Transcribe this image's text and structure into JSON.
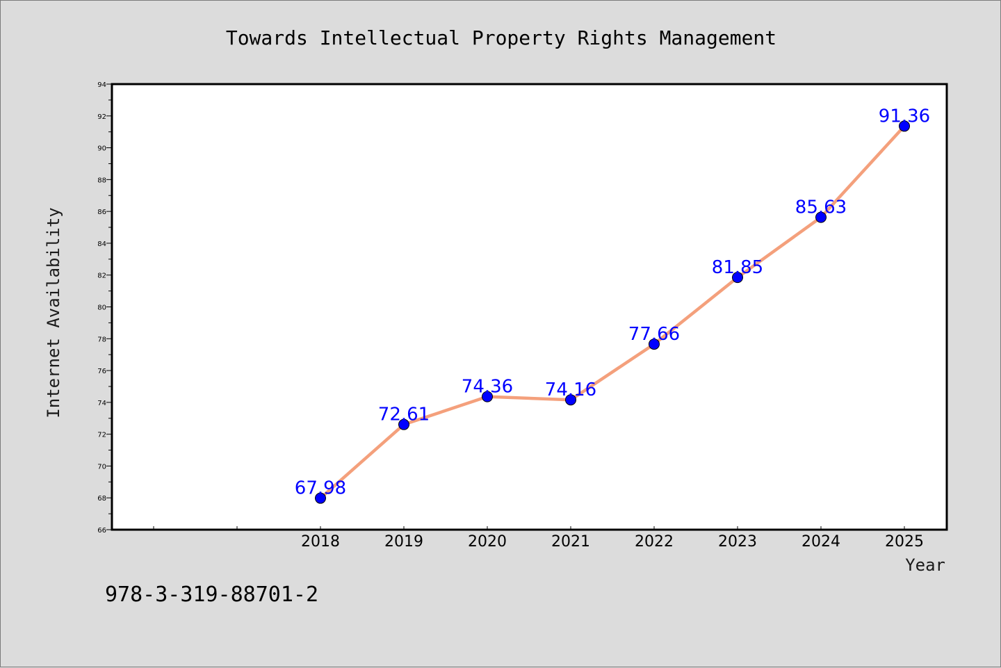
{
  "colors": {
    "background": "#dcdcdc",
    "plot_background": "#ffffff",
    "line": "#f4a07c",
    "marker": "#0000ff",
    "data_label": "#0000ff"
  },
  "footer": {
    "isbn": "978-3-319-88701-2"
  },
  "chart_data": {
    "type": "line",
    "title": "Towards Intellectual Property Rights Management",
    "xlabel": "Year",
    "ylabel": "Internet Availability",
    "categories": [
      "2018",
      "2019",
      "2020",
      "2021",
      "2022",
      "2023",
      "2024",
      "2025"
    ],
    "series": [
      {
        "values": [
          67.98,
          72.61,
          74.36,
          74.16,
          77.66,
          81.85,
          85.63,
          91.36
        ]
      }
    ],
    "data_labels": [
      "67.98",
      "72.61",
      "74.36",
      "74.16",
      "77.66",
      "81.85",
      "85.63",
      "91.36"
    ],
    "ylim": [
      66,
      94
    ],
    "yticks": [
      66,
      68,
      70,
      72,
      74,
      76,
      78,
      80,
      82,
      84,
      86,
      88,
      90,
      92,
      94
    ],
    "x_axis_extra_slots_left": 2,
    "grid": false,
    "legend": "none"
  }
}
